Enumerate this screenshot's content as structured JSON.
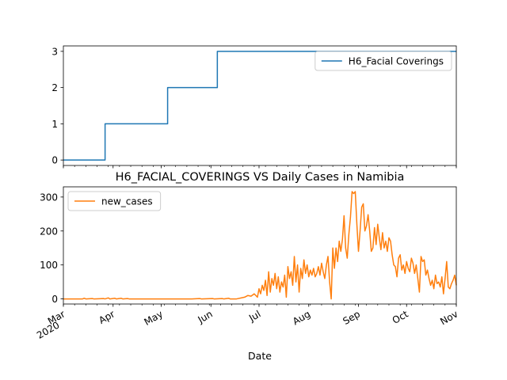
{
  "chart_data": [
    {
      "type": "line",
      "title": "",
      "xlabel": "",
      "ylabel": "",
      "xlim": [
        "2020-03-01",
        "2020-11-01"
      ],
      "ylim": [
        -0.15,
        3.15
      ],
      "yticks": [
        0,
        1,
        2,
        3
      ],
      "grid": false,
      "legend_position": "top-right",
      "series": [
        {
          "name": "H6_Facial Coverings",
          "color": "#1f77b4",
          "points": [
            [
              "2020-03-01",
              0
            ],
            [
              "2020-03-27",
              0
            ],
            [
              "2020-03-27",
              1
            ],
            [
              "2020-05-05",
              1
            ],
            [
              "2020-05-05",
              2
            ],
            [
              "2020-06-05",
              2
            ],
            [
              "2020-06-05",
              3
            ],
            [
              "2020-11-01",
              3
            ]
          ]
        }
      ]
    },
    {
      "type": "line",
      "title": "H6_FACIAL_COVERINGS VS Daily Cases in Namibia",
      "xlabel": "Date",
      "ylabel": "",
      "xlim": [
        "2020-03-01",
        "2020-11-01"
      ],
      "ylim": [
        -15,
        330
      ],
      "yticks": [
        0,
        100,
        200,
        300
      ],
      "grid": false,
      "legend_position": "top-left",
      "x_ticks": [
        {
          "date": "2020-03-01",
          "label": "Mar",
          "sublabel": "2020"
        },
        {
          "date": "2020-04-01",
          "label": "Apr"
        },
        {
          "date": "2020-05-01",
          "label": "May"
        },
        {
          "date": "2020-06-01",
          "label": "Jun"
        },
        {
          "date": "2020-07-01",
          "label": "Jul"
        },
        {
          "date": "2020-08-01",
          "label": "Aug"
        },
        {
          "date": "2020-09-01",
          "label": "Sep"
        },
        {
          "date": "2020-10-01",
          "label": "Oct"
        },
        {
          "date": "2020-11-01",
          "label": "Nov"
        }
      ],
      "series": [
        {
          "name": "new_cases",
          "color": "#ff7f0e",
          "points": [
            [
              "2020-03-01",
              0
            ],
            [
              "2020-03-13",
              0
            ],
            [
              "2020-03-14",
              2
            ],
            [
              "2020-03-15",
              0
            ],
            [
              "2020-03-19",
              1
            ],
            [
              "2020-03-20",
              0
            ],
            [
              "2020-03-26",
              1
            ],
            [
              "2020-03-27",
              0
            ],
            [
              "2020-03-29",
              3
            ],
            [
              "2020-03-30",
              0
            ],
            [
              "2020-04-02",
              2
            ],
            [
              "2020-04-03",
              0
            ],
            [
              "2020-04-06",
              2
            ],
            [
              "2020-04-07",
              0
            ],
            [
              "2020-04-10",
              1
            ],
            [
              "2020-04-11",
              0
            ],
            [
              "2020-05-01",
              0
            ],
            [
              "2020-05-20",
              0
            ],
            [
              "2020-05-25",
              1
            ],
            [
              "2020-05-26",
              0
            ],
            [
              "2020-06-02",
              1
            ],
            [
              "2020-06-03",
              0
            ],
            [
              "2020-06-08",
              1
            ],
            [
              "2020-06-09",
              0
            ],
            [
              "2020-06-12",
              2
            ],
            [
              "2020-06-13",
              0
            ],
            [
              "2020-06-17",
              0
            ],
            [
              "2020-06-20",
              3
            ],
            [
              "2020-06-22",
              5
            ],
            [
              "2020-06-24",
              10
            ],
            [
              "2020-06-26",
              8
            ],
            [
              "2020-06-28",
              15
            ],
            [
              "2020-06-30",
              5
            ],
            [
              "2020-07-01",
              30
            ],
            [
              "2020-07-02",
              15
            ],
            [
              "2020-07-03",
              40
            ],
            [
              "2020-07-04",
              25
            ],
            [
              "2020-07-05",
              55
            ],
            [
              "2020-07-06",
              10
            ],
            [
              "2020-07-07",
              80
            ],
            [
              "2020-07-08",
              20
            ],
            [
              "2020-07-09",
              60
            ],
            [
              "2020-07-10",
              40
            ],
            [
              "2020-07-11",
              75
            ],
            [
              "2020-07-12",
              30
            ],
            [
              "2020-07-13",
              65
            ],
            [
              "2020-07-14",
              20
            ],
            [
              "2020-07-15",
              50
            ],
            [
              "2020-07-16",
              35
            ],
            [
              "2020-07-17",
              70
            ],
            [
              "2020-07-18",
              5
            ],
            [
              "2020-07-19",
              95
            ],
            [
              "2020-07-20",
              60
            ],
            [
              "2020-07-21",
              80
            ],
            [
              "2020-07-22",
              40
            ],
            [
              "2020-07-23",
              125
            ],
            [
              "2020-07-24",
              50
            ],
            [
              "2020-07-25",
              100
            ],
            [
              "2020-07-26",
              20
            ],
            [
              "2020-07-27",
              90
            ],
            [
              "2020-07-28",
              60
            ],
            [
              "2020-07-29",
              115
            ],
            [
              "2020-07-30",
              75
            ],
            [
              "2020-07-31",
              100
            ],
            [
              "2020-08-01",
              65
            ],
            [
              "2020-08-02",
              85
            ],
            [
              "2020-08-03",
              70
            ],
            [
              "2020-08-04",
              90
            ],
            [
              "2020-08-05",
              65
            ],
            [
              "2020-08-06",
              75
            ],
            [
              "2020-08-07",
              95
            ],
            [
              "2020-08-08",
              70
            ],
            [
              "2020-08-09",
              105
            ],
            [
              "2020-08-10",
              80
            ],
            [
              "2020-08-11",
              60
            ],
            [
              "2020-08-12",
              100
            ],
            [
              "2020-08-13",
              125
            ],
            [
              "2020-08-14",
              50
            ],
            [
              "2020-08-15",
              0
            ],
            [
              "2020-08-16",
              150
            ],
            [
              "2020-08-17",
              90
            ],
            [
              "2020-08-18",
              150
            ],
            [
              "2020-08-19",
              110
            ],
            [
              "2020-08-20",
              170
            ],
            [
              "2020-08-21",
              140
            ],
            [
              "2020-08-22",
              175
            ],
            [
              "2020-08-23",
              245
            ],
            [
              "2020-08-24",
              150
            ],
            [
              "2020-08-25",
              120
            ],
            [
              "2020-08-26",
              190
            ],
            [
              "2020-08-27",
              240
            ],
            [
              "2020-08-28",
              316
            ],
            [
              "2020-08-29",
              310
            ],
            [
              "2020-08-30",
              316
            ],
            [
              "2020-08-31",
              220
            ],
            [
              "2020-09-01",
              140
            ],
            [
              "2020-09-02",
              200
            ],
            [
              "2020-09-03",
              270
            ],
            [
              "2020-09-04",
              280
            ],
            [
              "2020-09-05",
              200
            ],
            [
              "2020-09-06",
              215
            ],
            [
              "2020-09-07",
              248
            ],
            [
              "2020-09-08",
              200
            ],
            [
              "2020-09-09",
              140
            ],
            [
              "2020-09-10",
              150
            ],
            [
              "2020-09-11",
              210
            ],
            [
              "2020-09-12",
              160
            ],
            [
              "2020-09-13",
              220
            ],
            [
              "2020-09-14",
              180
            ],
            [
              "2020-09-15",
              145
            ],
            [
              "2020-09-16",
              195
            ],
            [
              "2020-09-17",
              150
            ],
            [
              "2020-09-18",
              170
            ],
            [
              "2020-09-19",
              140
            ],
            [
              "2020-09-20",
              180
            ],
            [
              "2020-09-21",
              170
            ],
            [
              "2020-09-22",
              130
            ],
            [
              "2020-09-23",
              100
            ],
            [
              "2020-09-24",
              95
            ],
            [
              "2020-09-25",
              65
            ],
            [
              "2020-09-26",
              120
            ],
            [
              "2020-09-27",
              130
            ],
            [
              "2020-09-28",
              85
            ],
            [
              "2020-09-29",
              100
            ],
            [
              "2020-09-30",
              75
            ],
            [
              "2020-10-01",
              110
            ],
            [
              "2020-10-02",
              90
            ],
            [
              "2020-10-03",
              80
            ],
            [
              "2020-10-04",
              120
            ],
            [
              "2020-10-05",
              105
            ],
            [
              "2020-10-06",
              75
            ],
            [
              "2020-10-07",
              100
            ],
            [
              "2020-10-08",
              60
            ],
            [
              "2020-10-09",
              20
            ],
            [
              "2020-10-10",
              125
            ],
            [
              "2020-10-11",
              110
            ],
            [
              "2020-10-12",
              115
            ],
            [
              "2020-10-13",
              70
            ],
            [
              "2020-10-14",
              85
            ],
            [
              "2020-10-15",
              60
            ],
            [
              "2020-10-16",
              40
            ],
            [
              "2020-10-17",
              55
            ],
            [
              "2020-10-18",
              30
            ],
            [
              "2020-10-19",
              70
            ],
            [
              "2020-10-20",
              45
            ],
            [
              "2020-10-21",
              50
            ],
            [
              "2020-10-22",
              35
            ],
            [
              "2020-10-23",
              65
            ],
            [
              "2020-10-24",
              15
            ],
            [
              "2020-10-25",
              60
            ],
            [
              "2020-10-26",
              110
            ],
            [
              "2020-10-27",
              35
            ],
            [
              "2020-10-28",
              30
            ],
            [
              "2020-10-29",
              45
            ],
            [
              "2020-10-30",
              55
            ],
            [
              "2020-10-31",
              70
            ],
            [
              "2020-11-01",
              40
            ]
          ]
        }
      ]
    }
  ]
}
